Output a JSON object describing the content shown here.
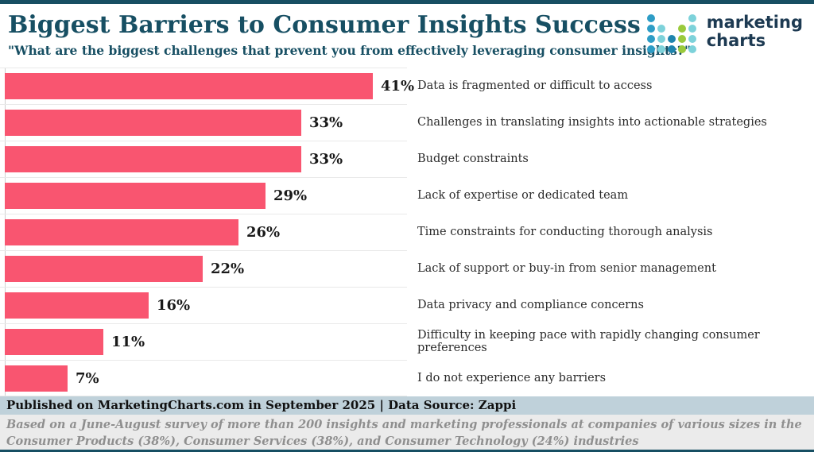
{
  "header": {
    "title": "Biggest Barriers to Consumer Insights Success",
    "subtitle": "\"What are the biggest challenges that prevent you from effectively leveraging consumer insights?\""
  },
  "logo": {
    "text_line1": "marketing",
    "text_line2": "charts",
    "colors": {
      "blue": "#2e9dc6",
      "cyan": "#7dd2da",
      "dark_blue": "#1f85ae",
      "green": "#9aca3c"
    },
    "dot_grid": [
      [
        "blue",
        null,
        null,
        null,
        "cyan"
      ],
      [
        "blue",
        "cyan",
        null,
        "green",
        "cyan"
      ],
      [
        "blue",
        "cyan",
        "dark_blue",
        "green",
        "cyan"
      ],
      [
        "blue",
        "cyan",
        "dark_blue",
        "green",
        "cyan"
      ]
    ]
  },
  "chart_data": {
    "type": "bar",
    "orientation": "horizontal",
    "title": "Biggest Barriers to Consumer Insights Success",
    "categories": [
      "Data is fragmented or difficult to access",
      "Challenges in translating insights into actionable strategies",
      "Budget constraints",
      "Lack of expertise or dedicated team",
      "Time constraints for conducting thorough analysis",
      "Lack of support or buy-in from senior management",
      "Data privacy and compliance concerns",
      "Difficulty in keeping pace with rapidly changing consumer preferences",
      "I do not experience any barriers"
    ],
    "values": [
      41,
      33,
      33,
      29,
      26,
      22,
      16,
      11,
      7
    ],
    "value_labels": [
      "41%",
      "33%",
      "33%",
      "29%",
      "26%",
      "22%",
      "16%",
      "11%",
      "7%"
    ],
    "bar_color": "#f95570",
    "xlim": [
      0,
      45
    ],
    "grid": "row-separators-only",
    "legend": "none",
    "xlabel": "",
    "ylabel": ""
  },
  "footer": {
    "published": "Published on MarketingCharts.com in September 2025 | Data Source: Zappi",
    "note_line1": "Based on a June-August survey of more than 200 insights and marketing professionals at companies of various sizes in the",
    "note_line2": "Consumer Products (38%), Consumer Services (38%), and Consumer Technology (24%) industries"
  },
  "style": {
    "accent_teal": "#174f63",
    "published_band_bg": "#bfd1da",
    "note_band_bg": "#ebebeb",
    "separator_color": "#e9e9e9"
  }
}
